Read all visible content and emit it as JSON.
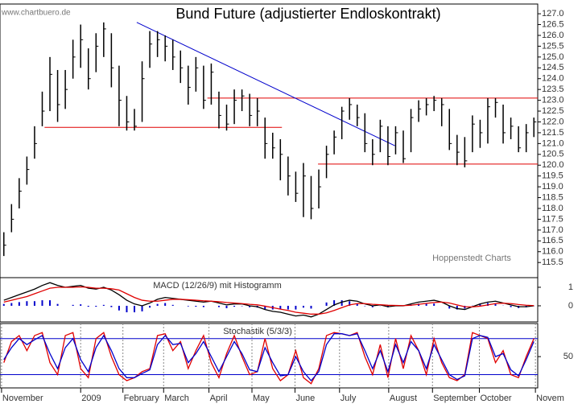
{
  "watermark": "www.chartbuero.de",
  "source": "Hoppenstedt Charts",
  "chart_data": [
    {
      "type": "ohlc",
      "title": "Bund Future (adjustierter Endloskontrakt)",
      "xlim": [
        0,
        70
      ],
      "xticks": [
        {
          "value": 0.2,
          "label": "November"
        },
        {
          "value": 10.5,
          "label": "2009"
        },
        {
          "value": 16,
          "label": "February"
        },
        {
          "value": 21.3,
          "label": "March"
        },
        {
          "value": 27.2,
          "label": "April"
        },
        {
          "value": 32.8,
          "label": "May"
        },
        {
          "value": 38.4,
          "label": "June"
        },
        {
          "value": 44.2,
          "label": "July"
        },
        {
          "value": 50.6,
          "label": "August"
        },
        {
          "value": 56.3,
          "label": "September"
        },
        {
          "value": 62.4,
          "label": "October"
        },
        {
          "value": 69.7,
          "label": "Novem"
        }
      ],
      "ylim": [
        114.8,
        127.45
      ],
      "yticks": [
        {
          "value": 115.5,
          "label": "115.5"
        },
        {
          "value": 116,
          "label": "116.0"
        },
        {
          "value": 116.5,
          "label": "116.5"
        },
        {
          "value": 117,
          "label": "117.0"
        },
        {
          "value": 117.5,
          "label": "117.5"
        },
        {
          "value": 118,
          "label": "118.0"
        },
        {
          "value": 118.5,
          "label": "118.5"
        },
        {
          "value": 119,
          "label": "119.0"
        },
        {
          "value": 119.5,
          "label": "119.5"
        },
        {
          "value": 120,
          "label": "120.0"
        },
        {
          "value": 120.5,
          "label": "120.5"
        },
        {
          "value": 121,
          "label": "121.0"
        },
        {
          "value": 121.5,
          "label": "121.5"
        },
        {
          "value": 122,
          "label": "122.0"
        },
        {
          "value": 122.5,
          "label": "122.5"
        },
        {
          "value": 123,
          "label": "123.0"
        },
        {
          "value": 123.5,
          "label": "123.5"
        },
        {
          "value": 124,
          "label": "124.0"
        },
        {
          "value": 124.5,
          "label": "124.5"
        },
        {
          "value": 125,
          "label": "125.0"
        },
        {
          "value": 125.5,
          "label": "125.5"
        },
        {
          "value": 126,
          "label": "126.0"
        },
        {
          "value": 126.5,
          "label": "126.5"
        },
        {
          "value": 127,
          "label": "127.0"
        }
      ],
      "color": "#000",
      "high": [
        116.9,
        118.2,
        119.4,
        120.4,
        121.8,
        123.4,
        125.0,
        124.4,
        124.4,
        125.8,
        126.5,
        125.4,
        126.1,
        126.6,
        126.1,
        124.6,
        123.2,
        122.6,
        124.8,
        126.2,
        126.2,
        126.0,
        125.8,
        125.3,
        124.6,
        125.0,
        124.6,
        124.7,
        123.4,
        122.8,
        123.5,
        123.5,
        123.3,
        123.1,
        122.2,
        121.5,
        121.2,
        120.4,
        119.7,
        120.1,
        119.5,
        119.8,
        120.9,
        121.6,
        122.7,
        123.1,
        122.8,
        122.4,
        121.2,
        122.1,
        121.8,
        121.8,
        121.6,
        122.6,
        123.0,
        123.1,
        123.2,
        123.1,
        122.6,
        121.4,
        121.3,
        122.3,
        122.1,
        123.1,
        123.1,
        122.8,
        122.2,
        121.8,
        121.9,
        122.2
      ],
      "low": [
        115.8,
        116.9,
        118.0,
        119.1,
        120.3,
        121.8,
        122.5,
        122.0,
        122.6,
        124.0,
        124.5,
        123.5,
        124.3,
        125.0,
        123.6,
        121.8,
        121.6,
        121.6,
        122.0,
        124.5,
        125.0,
        124.8,
        124.4,
        123.8,
        122.8,
        123.4,
        122.6,
        122.8,
        121.7,
        121.6,
        121.9,
        122.5,
        121.8,
        121.8,
        120.3,
        120.3,
        119.3,
        118.6,
        118.3,
        117.6,
        117.5,
        118.0,
        119.4,
        120.5,
        121.2,
        122.1,
        121.8,
        120.6,
        120.0,
        120.6,
        120.0,
        120.5,
        120.1,
        120.6,
        122.0,
        122.3,
        122.5,
        121.8,
        120.7,
        120.0,
        119.9,
        120.6,
        120.8,
        121.0,
        122.2,
        121.0,
        121.2,
        120.6,
        120.6,
        121.3
      ],
      "close": [
        116.3,
        117.5,
        118.8,
        119.8,
        121.0,
        122.5,
        124.2,
        122.8,
        123.5,
        125.0,
        125.8,
        124.0,
        125.5,
        126.3,
        124.5,
        123.0,
        122.0,
        121.8,
        124.0,
        125.6,
        125.8,
        125.5,
        125.0,
        124.5,
        123.6,
        124.5,
        123.0,
        124.3,
        122.3,
        121.9,
        123.0,
        123.2,
        122.3,
        122.5,
        121.0,
        120.8,
        120.5,
        119.5,
        118.7,
        119.5,
        118.0,
        119.0,
        120.5,
        121.3,
        122.5,
        122.8,
        122.2,
        121.0,
        120.5,
        121.8,
        120.4,
        121.5,
        120.3,
        122.2,
        122.6,
        122.8,
        123.0,
        122.8,
        121.0,
        120.6,
        120.2,
        121.9,
        121.5,
        122.7,
        122.9,
        121.5,
        121.8,
        120.8,
        121.5,
        122.0
      ],
      "levels": [
        {
          "value": 123.1,
          "from": 27,
          "to": 70,
          "color": "#e00000"
        },
        {
          "value": 121.75,
          "from": 5.8,
          "to": 36.7,
          "color": "#e00000"
        },
        {
          "value": 120.05,
          "from": 41.4,
          "to": 70,
          "color": "#e00000"
        }
      ],
      "trendline": {
        "from": [
          17.8,
          126.6
        ],
        "to": [
          51.4,
          120.9
        ],
        "color": "#0000cc"
      }
    },
    {
      "type": "macd",
      "title": "MACD (12/26/9) mit Histogramm",
      "ylim": [
        -0.87,
        1.52
      ],
      "yticks": [
        0,
        1
      ],
      "series": [
        {
          "color": "#000",
          "values": [
            0.3,
            0.45,
            0.6,
            0.75,
            0.9,
            1.1,
            1.25,
            1.1,
            1.0,
            1.05,
            1.1,
            0.95,
            0.9,
            1.0,
            0.85,
            0.6,
            0.3,
            0.1,
            0.0,
            0.15,
            0.35,
            0.45,
            0.4,
            0.35,
            0.3,
            0.25,
            0.2,
            0.25,
            0.15,
            0.05,
            0.1,
            0.1,
            0.0,
            -0.05,
            -0.2,
            -0.3,
            -0.35,
            -0.45,
            -0.55,
            -0.5,
            -0.6,
            -0.45,
            -0.2,
            0.05,
            0.2,
            0.3,
            0.25,
            0.1,
            0.0,
            0.05,
            -0.05,
            0.0,
            0.0,
            0.1,
            0.2,
            0.25,
            0.3,
            0.2,
            0.0,
            -0.15,
            -0.2,
            -0.05,
            0.1,
            0.2,
            0.25,
            0.15,
            0.05,
            -0.05,
            -0.05,
            0.0
          ]
        },
        {
          "color": "#e00000",
          "values": [
            0.2,
            0.3,
            0.4,
            0.5,
            0.65,
            0.8,
            0.95,
            1.0,
            1.0,
            1.0,
            1.02,
            1.0,
            0.95,
            0.95,
            0.92,
            0.85,
            0.65,
            0.45,
            0.3,
            0.25,
            0.25,
            0.3,
            0.35,
            0.35,
            0.33,
            0.3,
            0.27,
            0.25,
            0.22,
            0.18,
            0.15,
            0.12,
            0.08,
            0.05,
            -0.02,
            -0.1,
            -0.18,
            -0.25,
            -0.35,
            -0.4,
            -0.45,
            -0.45,
            -0.38,
            -0.25,
            -0.1,
            0.05,
            0.12,
            0.12,
            0.08,
            0.06,
            0.03,
            0.02,
            0.01,
            0.03,
            0.08,
            0.13,
            0.18,
            0.2,
            0.15,
            0.05,
            -0.05,
            -0.06,
            -0.02,
            0.05,
            0.12,
            0.14,
            0.12,
            0.07,
            0.03,
            0.01
          ]
        }
      ],
      "histogram": {
        "color": "#0000cc",
        "values": [
          0.1,
          0.15,
          0.2,
          0.25,
          0.25,
          0.3,
          0.3,
          0.1,
          0,
          0.05,
          0.08,
          -0.05,
          -0.05,
          0.05,
          -0.07,
          -0.25,
          -0.35,
          -0.35,
          -0.3,
          -0.1,
          0.1,
          0.15,
          0.05,
          0,
          -0.03,
          -0.05,
          -0.07,
          0,
          -0.07,
          -0.13,
          -0.05,
          -0.02,
          -0.08,
          -0.1,
          -0.18,
          -0.2,
          -0.17,
          -0.2,
          -0.2,
          -0.1,
          -0.15,
          0,
          0.18,
          0.3,
          0.3,
          0.25,
          0.13,
          -0.02,
          -0.08,
          -0.01,
          -0.08,
          -0.02,
          -0.01,
          0.07,
          0.12,
          0.12,
          0.12,
          0,
          -0.15,
          -0.2,
          -0.15,
          0.01,
          0.12,
          0.15,
          0.13,
          0.01,
          -0.07,
          -0.12,
          -0.08,
          -0.01
        ]
      }
    },
    {
      "type": "stochastic",
      "title": "Stochastik (5/3/3)",
      "ylim": [
        -2,
        105
      ],
      "yticks": [
        50
      ],
      "levels": [
        {
          "value": 80,
          "color": "#0000cc"
        },
        {
          "value": 20,
          "color": "#0000cc"
        }
      ],
      "series": [
        {
          "color": "#e00000",
          "values": [
            40,
            75,
            85,
            60,
            85,
            90,
            40,
            20,
            85,
            90,
            30,
            15,
            80,
            90,
            50,
            20,
            10,
            15,
            25,
            30,
            85,
            88,
            60,
            75,
            30,
            60,
            85,
            40,
            15,
            55,
            85,
            50,
            20,
            25,
            80,
            30,
            10,
            20,
            60,
            15,
            5,
            30,
            85,
            90,
            88,
            85,
            90,
            50,
            20,
            70,
            15,
            80,
            30,
            85,
            60,
            20,
            80,
            40,
            15,
            10,
            20,
            90,
            85,
            80,
            40,
            60,
            20,
            15,
            50,
            80
          ]
        },
        {
          "color": "#0000cc",
          "values": [
            45,
            65,
            80,
            70,
            78,
            85,
            55,
            30,
            65,
            80,
            45,
            25,
            65,
            85,
            60,
            30,
            15,
            15,
            22,
            28,
            70,
            85,
            70,
            72,
            40,
            55,
            75,
            50,
            25,
            50,
            75,
            55,
            28,
            25,
            65,
            40,
            18,
            20,
            50,
            25,
            10,
            25,
            70,
            88,
            88,
            85,
            88,
            60,
            30,
            60,
            25,
            70,
            40,
            75,
            60,
            30,
            70,
            45,
            20,
            12,
            18,
            80,
            85,
            82,
            50,
            55,
            28,
            18,
            45,
            75
          ]
        }
      ]
    }
  ]
}
